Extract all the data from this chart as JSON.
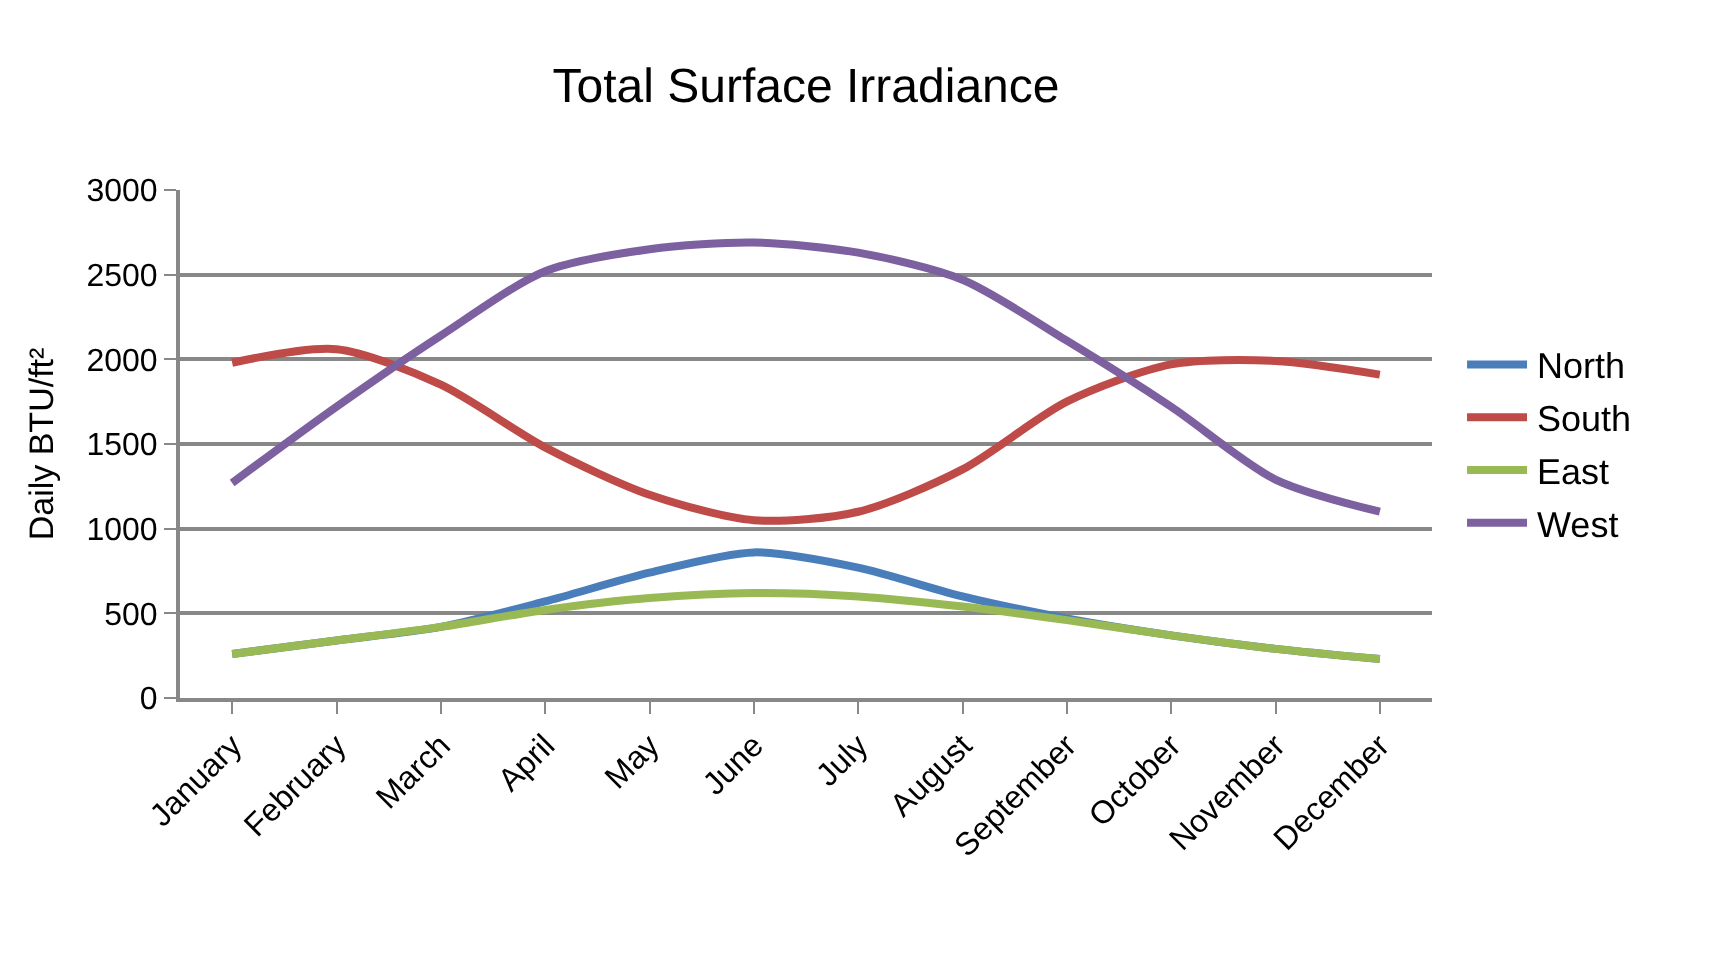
{
  "chart_data": {
    "type": "line",
    "title": "Total Surface Irradiance",
    "ylabel": "Daily BTU/ft²",
    "categories": [
      "January",
      "February",
      "March",
      "April",
      "May",
      "June",
      "July",
      "August",
      "September",
      "October",
      "November",
      "December"
    ],
    "series": [
      {
        "name": "North",
        "color": "#4a7ebb",
        "values": [
          260,
          340,
          420,
          570,
          740,
          860,
          770,
          600,
          470,
          370,
          290,
          230
        ]
      },
      {
        "name": "South",
        "color": "#be4b48",
        "values": [
          1980,
          2060,
          1850,
          1480,
          1200,
          1050,
          1100,
          1350,
          1750,
          1970,
          1990,
          1910
        ]
      },
      {
        "name": "East",
        "color": "#98b954",
        "values": [
          260,
          340,
          420,
          520,
          590,
          620,
          600,
          540,
          460,
          370,
          290,
          230
        ]
      },
      {
        "name": "West",
        "color": "#7d60a0",
        "values": [
          1270,
          1720,
          2140,
          2520,
          2650,
          2690,
          2630,
          2470,
          2110,
          1720,
          1290,
          1100
        ]
      }
    ],
    "ylim": [
      0,
      3000
    ],
    "yticks": [
      0,
      500,
      1000,
      1500,
      2000,
      2500,
      3000
    ],
    "grid": "y",
    "legend": "right",
    "marker": "none",
    "line_style": "solid"
  }
}
